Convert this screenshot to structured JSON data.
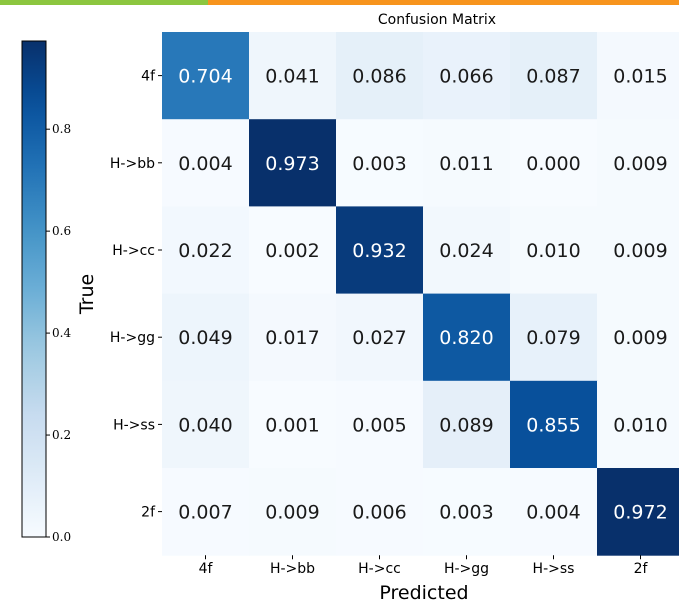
{
  "theme": {
    "band_left_color": "#8cc63f",
    "band_right_color": "#f7941d",
    "colormap": "Blues"
  },
  "chart_data": {
    "type": "heatmap",
    "title": "Confusion Matrix",
    "xlabel": "Predicted",
    "ylabel": "True",
    "rows": [
      "4f",
      "H->bb",
      "H->cc",
      "H->gg",
      "H->ss",
      "2f"
    ],
    "cols": [
      "4f",
      "H->bb",
      "H->cc",
      "H->gg",
      "H->ss",
      "2f"
    ],
    "values": [
      [
        0.704,
        0.041,
        0.086,
        0.066,
        0.087,
        0.015
      ],
      [
        0.004,
        0.973,
        0.003,
        0.011,
        0.0,
        0.009
      ],
      [
        0.022,
        0.002,
        0.932,
        0.024,
        0.01,
        0.009
      ],
      [
        0.049,
        0.017,
        0.027,
        0.82,
        0.079,
        0.009
      ],
      [
        0.04,
        0.001,
        0.005,
        0.089,
        0.855,
        0.01
      ],
      [
        0.007,
        0.009,
        0.006,
        0.003,
        0.004,
        0.972
      ]
    ],
    "value_labels": [
      [
        "0.704",
        "0.041",
        "0.086",
        "0.066",
        "0.087",
        "0.015"
      ],
      [
        "0.004",
        "0.973",
        "0.003",
        "0.011",
        "0.000",
        "0.009"
      ],
      [
        "0.022",
        "0.002",
        "0.932",
        "0.024",
        "0.010",
        "0.009"
      ],
      [
        "0.049",
        "0.017",
        "0.027",
        "0.820",
        "0.079",
        "0.009"
      ],
      [
        "0.040",
        "0.001",
        "0.005",
        "0.089",
        "0.855",
        "0.010"
      ],
      [
        "0.007",
        "0.009",
        "0.006",
        "0.003",
        "0.004",
        "0.972"
      ]
    ],
    "colorbar": {
      "range": [
        0.0,
        0.973
      ],
      "ticks": [
        0.0,
        0.2,
        0.4,
        0.6,
        0.8
      ],
      "tick_labels": [
        "0.0",
        "0.2",
        "0.4",
        "0.6",
        "0.8"
      ]
    }
  }
}
